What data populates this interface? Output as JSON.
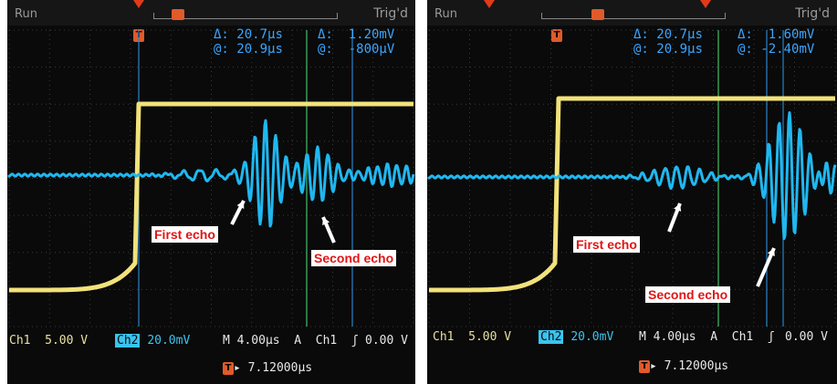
{
  "left": {
    "run": "Run",
    "trig": "Trig'd",
    "trig_marker": "T",
    "cursor": {
      "delta_label": "Δ:",
      "at_label": "@:",
      "time_delta": "20.7µs",
      "time_at": "20.9µs",
      "volt_delta": "1.20mV",
      "volt_at": "-800µV"
    },
    "ch1": "Ch1",
    "ch1_scale": "5.00 V",
    "ch2": "Ch2",
    "ch2_scale": "20.0mV",
    "timebase": "M 4.00µs  A  Ch1  ʃ",
    "trigger_level": "0.00 V",
    "delay": "▸ 7.12000µs",
    "first_echo": "First echo",
    "second_echo": "Second echo"
  },
  "right": {
    "run": "Run",
    "trig": "Trig'd",
    "trig_marker": "T",
    "cursor": {
      "delta_label": "Δ:",
      "at_label": "@:",
      "time_delta": "20.7µs",
      "time_at": "20.9µs",
      "volt_delta": "1.60mV",
      "volt_at": "-2.40mV"
    },
    "ch1": "Ch1",
    "ch1_scale": "5.00 V",
    "ch2": "Ch2",
    "ch2_scale": "20.0mV",
    "timebase": "M 4.00µs  A  Ch1  ʃ",
    "trigger_level": "0.00 V",
    "delay": "▸ 7.12000µs",
    "first_echo": "First echo",
    "second_echo": "Second echo"
  },
  "colors": {
    "ch1_trace": "#f2e27a",
    "ch2_trace": "#1fb8f0",
    "grid": "#3b3b3b",
    "callout_text": "#e01515",
    "marker": "#e13a1a"
  }
}
